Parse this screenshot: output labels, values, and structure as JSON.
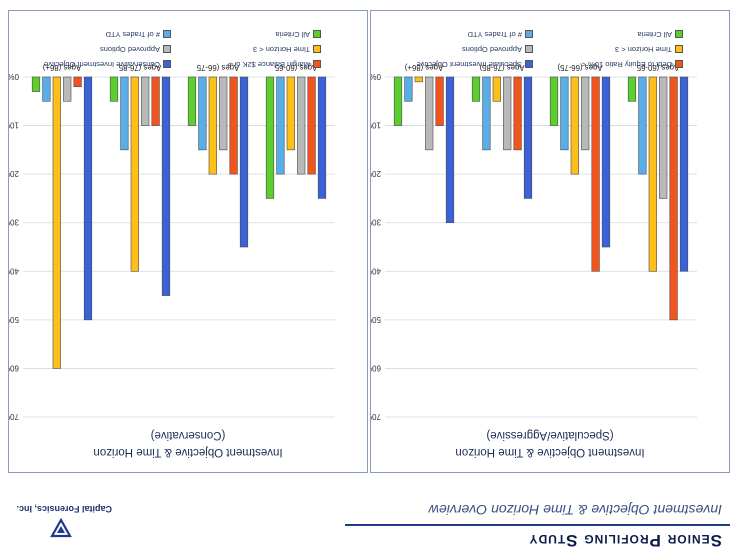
{
  "header": {
    "title": "Senior Profiling Study",
    "subtitle": "Investment Objective & Time Horizon Overview"
  },
  "company": "Capital Forensics, Inc.",
  "colors": {
    "blue": "#3b62d8",
    "orange": "#f2541e",
    "gray": "#b9b9b9",
    "yellow": "#ffbf1a",
    "lightblue": "#5aaee8",
    "green": "#5ccf2e"
  },
  "chart_data": [
    {
      "type": "bar",
      "title": "Investment Objective & Time Horizon",
      "subtitle": "(Speculative/Aggressive)",
      "categories": [
        "Ages (60-65",
        "Ages (66-75)",
        "Ages (76-85)",
        "Ages (86+)"
      ],
      "ylim": [
        0,
        70
      ],
      "yticks": [
        "0%",
        "10%",
        "20%",
        "30%",
        "40%",
        "50%",
        "60%",
        "70%"
      ],
      "grid": true,
      "legend_position": "bottom",
      "series": [
        {
          "name": "Speculate Investment Objective",
          "color": "blue",
          "values": [
            40,
            35,
            25,
            30
          ]
        },
        {
          "name": "Debt to Equity Ratio 10% <",
          "color": "orange",
          "values": [
            50,
            40,
            15,
            10
          ]
        },
        {
          "name": "Approved Options",
          "color": "gray",
          "values": [
            25,
            15,
            15,
            15
          ]
        },
        {
          "name": "Time Horizon < 3",
          "color": "yellow",
          "values": [
            40,
            20,
            5,
            1
          ]
        },
        {
          "name": "# of Trades YTD",
          "color": "lightblue",
          "values": [
            20,
            15,
            15,
            5
          ]
        },
        {
          "name": "All Criteria",
          "color": "green",
          "values": [
            5,
            10,
            5,
            10
          ]
        }
      ]
    },
    {
      "type": "bar",
      "title": "Investment Objective & Time Horizon",
      "subtitle": "(Conservative)",
      "categories": [
        "Ages (60-65",
        "Ages (66-75",
        "Ages (76-85",
        "Ages (86+)"
      ],
      "ylim": [
        0,
        70
      ],
      "yticks": [
        "0%",
        "10%",
        "20%",
        "30%",
        "40%",
        "50%",
        "60%",
        "70%"
      ],
      "grid": true,
      "legend_position": "bottom",
      "series": [
        {
          "name": "Conservative Investment Objective",
          "color": "blue",
          "values": [
            25,
            35,
            45,
            50
          ]
        },
        {
          "name": "Margin Balance $2K or >",
          "color": "orange",
          "values": [
            20,
            20,
            10,
            2
          ]
        },
        {
          "name": "Approved Options",
          "color": "gray",
          "values": [
            20,
            15,
            10,
            5
          ]
        },
        {
          "name": "Time Horizon < 3",
          "color": "yellow",
          "values": [
            15,
            20,
            40,
            60
          ]
        },
        {
          "name": "# of Trades YTD",
          "color": "lightblue",
          "values": [
            20,
            15,
            15,
            5
          ]
        },
        {
          "name": "All Criteria",
          "color": "green",
          "values": [
            25,
            10,
            5,
            3
          ]
        }
      ]
    }
  ]
}
